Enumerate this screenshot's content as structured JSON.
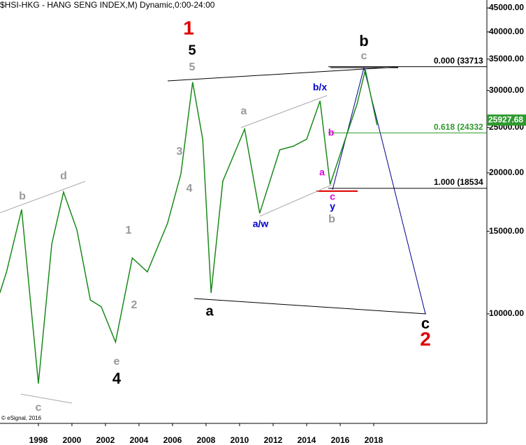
{
  "chart_data": {
    "type": "line",
    "title": "$HSI-HKG - HANG SENG INDEX,M) Dynamic,0:00-24:00",
    "credit": "© eSignal, 2016",
    "log_scale": true,
    "x": [
      1995.7,
      1996.1,
      1997.0,
      1998.0,
      1998.8,
      1999.5,
      2000.3,
      2001.1,
      2001.75,
      2002.6,
      2003.6,
      2004.5,
      2005.7,
      2006.5,
      2007.2,
      2007.8,
      2008.3,
      2009.0,
      2010.3,
      2011.2,
      2012.4,
      2013.2,
      2014.0,
      2014.8,
      2015.4,
      2016.3,
      2017.0,
      2017.5,
      2018.2
    ],
    "series": [
      {
        "name": "$HSI-HKG",
        "color": "#1a8a1a",
        "values": [
          11080,
          12290,
          16700,
          7100,
          14100,
          18200,
          15100,
          10700,
          10350,
          8700,
          13160,
          12290,
          15600,
          19900,
          31250,
          23600,
          11080,
          19200,
          24800,
          16400,
          22400,
          22800,
          23600,
          28500,
          18900,
          23600,
          28000,
          33200,
          25300
        ]
      }
    ],
    "xlim": [
      1995.71,
      2024.75
    ],
    "xticks": [
      1998,
      2000,
      2002,
      2004,
      2006,
      2008,
      2010,
      2012,
      2014,
      2016,
      2018
    ],
    "ylim": [
      5834,
      46800
    ],
    "yticks": [
      {
        "value": 10000,
        "label": "10000.00"
      },
      {
        "value": 15000,
        "label": "15000.00"
      },
      {
        "value": 20000,
        "label": "20000.00"
      },
      {
        "value": 25000,
        "label": "25000.00"
      },
      {
        "value": 30000,
        "label": "30000.00"
      },
      {
        "value": 35000,
        "label": "35000.00"
      },
      {
        "value": 40000,
        "label": "40000.00"
      },
      {
        "value": 45000,
        "label": "45000.00"
      }
    ],
    "last_price": 25927.68,
    "levels": [
      {
        "value": 33713,
        "label": "0.000 (33713",
        "color": "#000000"
      },
      {
        "value": 24332,
        "label": "0.618 (24332",
        "color": "#2e9a2e"
      },
      {
        "value": 18534,
        "label": "1.000 (18534",
        "color": "#000000"
      }
    ],
    "annotations": [
      {
        "text": "1",
        "color": "#e00000"
      },
      {
        "text": "5",
        "color": "#000000"
      },
      {
        "text": "5",
        "color": "#999999"
      },
      {
        "text": "3",
        "color": "#999999"
      },
      {
        "text": "4",
        "color": "#999999"
      },
      {
        "text": "1",
        "color": "#999999"
      },
      {
        "text": "2",
        "color": "#999999"
      },
      {
        "text": "e",
        "color": "#999999"
      },
      {
        "text": "4",
        "color": "#000000"
      },
      {
        "text": "b",
        "color": "#999999"
      },
      {
        "text": "d",
        "color": "#999999"
      },
      {
        "text": "c",
        "color": "#999999"
      },
      {
        "text": "a",
        "color": "#000000"
      },
      {
        "text": "a",
        "color": "#999999"
      },
      {
        "text": "b/x",
        "color": "#0000cc"
      },
      {
        "text": "a/w",
        "color": "#0000cc"
      },
      {
        "text": "a",
        "color": "#e000e0"
      },
      {
        "text": "b",
        "color": "#e000e0"
      },
      {
        "text": "c",
        "color": "#e000e0"
      },
      {
        "text": "y",
        "color": "#0000cc"
      },
      {
        "text": "b",
        "color": "#999999"
      },
      {
        "text": "c",
        "color": "#999999"
      },
      {
        "text": "b",
        "color": "#000000"
      },
      {
        "text": "c",
        "color": "#000000"
      },
      {
        "text": "2",
        "color": "#e00000"
      }
    ]
  }
}
